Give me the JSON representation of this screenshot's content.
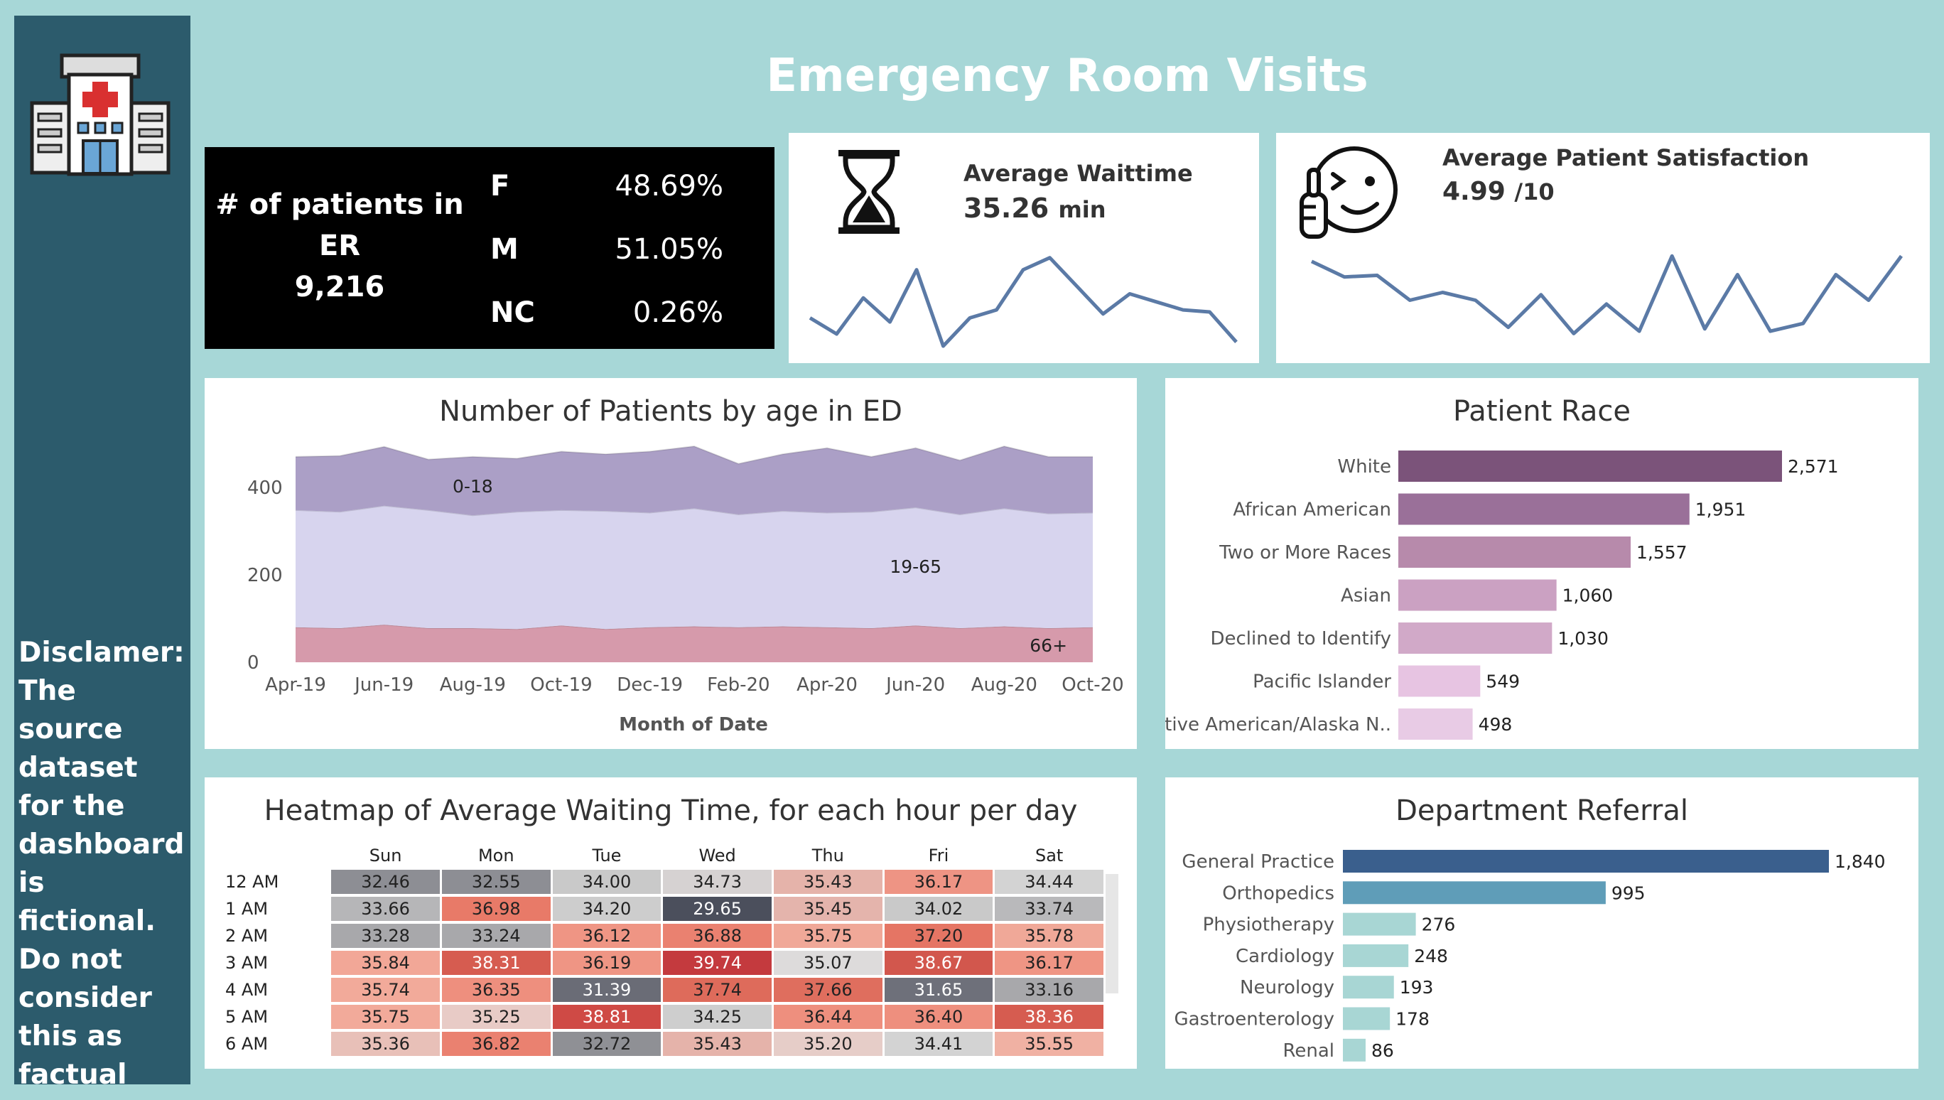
{
  "dashboard": {
    "title": "Emergency Room Visits",
    "disclaimer": "Disclamer:\nThe source dataset for the dashboard is fictional. Do not consider this as factual",
    "hospital_icon": "hospital-icon"
  },
  "er_summary": {
    "label_line1": "# of patients in",
    "label_line2": "ER",
    "total": "9,216",
    "gender": [
      {
        "code": "F",
        "pct": "48.69%"
      },
      {
        "code": "M",
        "pct": "51.05%"
      },
      {
        "code": "NC",
        "pct": "0.26%"
      }
    ]
  },
  "wait_card": {
    "icon": "hourglass-icon",
    "label": "Average Waittime",
    "value": "35.26",
    "unit": "min",
    "color": "#5b7aa6"
  },
  "satisfaction_card": {
    "icon": "smiley-thumbs-up-icon",
    "label": "Average Patient Satisfaction",
    "value": "4.99",
    "unit": "/10",
    "color": "#5b7aa6"
  },
  "chart_data": [
    {
      "id": "wait-sparkline",
      "type": "line",
      "values": [
        35.1,
        34.7,
        35.6,
        35.0,
        36.3,
        34.4,
        35.1,
        35.3,
        36.3,
        36.6,
        35.9,
        35.2,
        35.7,
        35.5,
        35.3,
        35.25,
        34.5
      ],
      "ylim": [
        34.4,
        36.7
      ],
      "color": "#5b7aa6"
    },
    {
      "id": "satisfaction-sparkline",
      "type": "line",
      "values": [
        5.55,
        5.35,
        5.37,
        5.05,
        5.15,
        5.05,
        4.7,
        5.12,
        4.62,
        5.0,
        4.65,
        5.62,
        4.68,
        5.38,
        4.65,
        4.75,
        5.38,
        5.05,
        5.62
      ],
      "ylim": [
        4.55,
        5.65
      ],
      "color": "#5b7aa6"
    },
    {
      "id": "age-area",
      "type": "area",
      "stacked": true,
      "title": "Number of Patients by age in ED",
      "xlabel": "Month of Date",
      "x": [
        "Apr-19",
        "May-19",
        "Jun-19",
        "Jul-19",
        "Aug-19",
        "Sep-19",
        "Oct-19",
        "Nov-19",
        "Dec-19",
        "Jan-20",
        "Feb-20",
        "Mar-20",
        "Apr-20",
        "May-20",
        "Jun-20",
        "Jul-20",
        "Aug-20",
        "Sep-20",
        "Oct-20"
      ],
      "tick_labels": [
        "Apr-19",
        "Jun-19",
        "Aug-19",
        "Oct-19",
        "Dec-19",
        "Feb-20",
        "Apr-20",
        "Jun-20",
        "Aug-20",
        "Oct-20"
      ],
      "yticks": [
        "0",
        "200",
        "400"
      ],
      "ylim": [
        0,
        520
      ],
      "series": [
        {
          "name": "66+",
          "values": [
            80,
            78,
            86,
            78,
            78,
            76,
            84,
            76,
            80,
            82,
            80,
            82,
            80,
            78,
            84,
            78,
            82,
            78,
            80
          ],
          "color": "#d69aab"
        },
        {
          "name": "19-65",
          "values": [
            268,
            266,
            272,
            270,
            258,
            268,
            264,
            270,
            262,
            270,
            258,
            264,
            262,
            266,
            270,
            260,
            270,
            262,
            262
          ],
          "color": "#d7d4ee"
        },
        {
          "name": "0-18",
          "values": [
            122,
            128,
            135,
            116,
            134,
            122,
            134,
            130,
            140,
            142,
            116,
            130,
            148,
            126,
            136,
            124,
            142,
            130,
            128
          ],
          "color": "#ab9fc6"
        }
      ],
      "labels": [
        {
          "text": "0-18",
          "at_index": 4,
          "series": "0-18"
        },
        {
          "text": "19-65",
          "at_index": 14,
          "series": "19-65"
        },
        {
          "text": "66+",
          "at_index": 17,
          "series": "66+"
        }
      ]
    },
    {
      "id": "race-bar",
      "type": "bar",
      "orientation": "horizontal",
      "title": "Patient Race",
      "categories": [
        "White",
        "African American",
        "Two or More Races",
        "Asian",
        "Declined to Identify",
        "Pacific Islander",
        "Native American/Alaska N.."
      ],
      "values": [
        2571,
        1951,
        1557,
        1060,
        1030,
        549,
        498
      ],
      "value_labels": [
        "2,571",
        "1,951",
        "1,557",
        "1,060",
        "1,030",
        "549",
        "498"
      ],
      "colors": [
        "#7b537a",
        "#9a7099",
        "#b78aab",
        "#cba1c2",
        "#d1a9c8",
        "#e7c4e2",
        "#e8cbe5"
      ],
      "xlim": [
        0,
        2571
      ]
    },
    {
      "id": "department-bar",
      "type": "bar",
      "orientation": "horizontal",
      "title": "Department Referral",
      "categories": [
        "General Practice",
        "Orthopedics",
        "Physiotherapy",
        "Cardiology",
        "Neurology",
        "Gastroenterology",
        "Renal"
      ],
      "values": [
        1840,
        995,
        276,
        248,
        193,
        178,
        86
      ],
      "value_labels": [
        "1,840",
        "995",
        "276",
        "248",
        "193",
        "178",
        "86"
      ],
      "colors": [
        "#3a5f8d",
        "#5f9db8",
        "#a8d6d4",
        "#a8d6d4",
        "#a8d6d4",
        "#a8d6d4",
        "#a8d6d4"
      ],
      "xlim": [
        0,
        1840
      ]
    },
    {
      "id": "wait-heatmap",
      "type": "heatmap",
      "title": "Heatmap of Average Waiting Time, for each hour per day",
      "columns": [
        "Sun",
        "Mon",
        "Tue",
        "Wed",
        "Thu",
        "Fri",
        "Sat"
      ],
      "rows": [
        {
          "hour": "12 AM",
          "values": [
            "32.46",
            "32.55",
            "34.00",
            "34.73",
            "35.43",
            "36.17",
            "34.44"
          ],
          "colors": [
            "#8d8e94",
            "#8d8e94",
            "#c9c9c9",
            "#d6d2d2",
            "#e5b3aa",
            "#ee9484",
            "#d3d3d3"
          ]
        },
        {
          "hour": "1 AM",
          "values": [
            "33.66",
            "36.98",
            "34.20",
            "29.65",
            "35.45",
            "34.02",
            "33.74"
          ],
          "colors": [
            "#b6b6b8",
            "#e87a68",
            "#cdcdcd",
            "#4b4f5c",
            "#e4b4ac",
            "#c9c9c9",
            "#b9b9bb"
          ]
        },
        {
          "hour": "2 AM",
          "values": [
            "33.28",
            "33.24",
            "36.12",
            "36.88",
            "35.75",
            "37.20",
            "35.78"
          ],
          "colors": [
            "#a8a8ab",
            "#a8a8ab",
            "#ef9584",
            "#ea8170",
            "#f0a898",
            "#e57564",
            "#f0a898"
          ]
        },
        {
          "hour": "3 AM",
          "values": [
            "35.84",
            "38.31",
            "36.19",
            "39.74",
            "35.07",
            "38.67",
            "36.17"
          ],
          "colors": [
            "#f2a797",
            "#d65c50",
            "#ef9584",
            "#c43a3e",
            "#dddbdb",
            "#d2574d",
            "#ef9584"
          ]
        },
        {
          "hour": "4 AM",
          "values": [
            "35.74",
            "36.35",
            "31.39",
            "37.74",
            "37.66",
            "31.65",
            "33.16"
          ],
          "colors": [
            "#f2aa9a",
            "#ee8f7e",
            "#6a6c76",
            "#de6b5b",
            "#df6e5e",
            "#6e707a",
            "#a8a8ab"
          ]
        },
        {
          "hour": "5 AM",
          "values": [
            "35.75",
            "35.25",
            "38.81",
            "34.25",
            "36.44",
            "36.40",
            "38.36"
          ],
          "colors": [
            "#f2aa9a",
            "#e8cbc6",
            "#cf4a45",
            "#cecece",
            "#ee8f7e",
            "#ee8f7e",
            "#d65c50"
          ]
        },
        {
          "hour": "6 AM",
          "values": [
            "35.36",
            "36.82",
            "32.72",
            "35.43",
            "35.20",
            "34.41",
            "35.55"
          ],
          "colors": [
            "#e8c0b8",
            "#ea8170",
            "#8f9095",
            "#e5b3aa",
            "#e6cdc8",
            "#d3d3d3",
            "#f0b1a3"
          ]
        }
      ]
    }
  ]
}
